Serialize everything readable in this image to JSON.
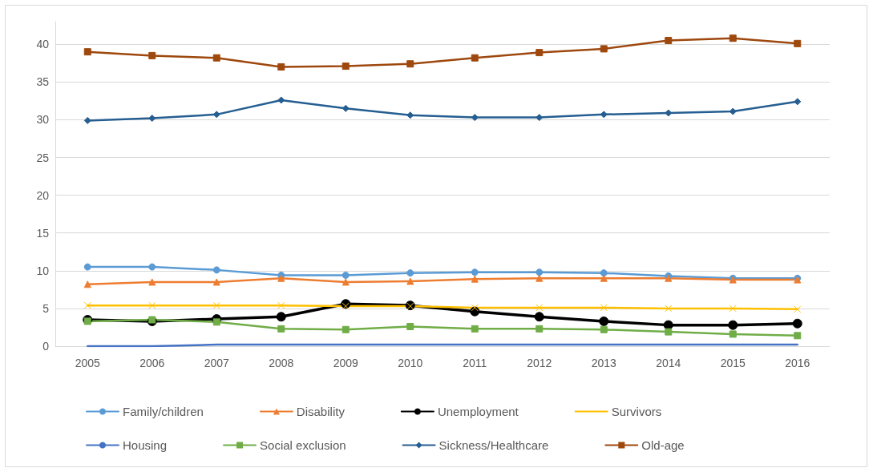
{
  "chart_data": {
    "type": "line",
    "categories": [
      "2005",
      "2006",
      "2007",
      "2008",
      "2009",
      "2010",
      "2011",
      "2012",
      "2013",
      "2014",
      "2015",
      "2016"
    ],
    "series": [
      {
        "name": "Family/children",
        "color": "#5b9bd5",
        "marker": "circle",
        "values": [
          10.5,
          10.5,
          10.1,
          9.4,
          9.4,
          9.7,
          9.8,
          9.8,
          9.7,
          9.3,
          9.0,
          9.0
        ]
      },
      {
        "name": "Disability",
        "color": "#ed7d31",
        "marker": "triangle",
        "values": [
          8.2,
          8.5,
          8.5,
          9.0,
          8.5,
          8.6,
          8.9,
          9.0,
          9.0,
          9.0,
          8.8,
          8.8
        ]
      },
      {
        "name": "Unemployment",
        "color": "#000000",
        "marker": "circle",
        "values": [
          3.5,
          3.3,
          3.6,
          3.9,
          5.6,
          5.4,
          4.6,
          3.9,
          3.3,
          2.8,
          2.8,
          3.0
        ]
      },
      {
        "name": "Survivors",
        "color": "#ffc000",
        "marker": "cross",
        "values": [
          5.4,
          5.4,
          5.4,
          5.4,
          5.3,
          5.3,
          5.1,
          5.1,
          5.1,
          5.0,
          5.0,
          4.9
        ]
      },
      {
        "name": "Housing",
        "color": "#4472c4",
        "marker": "none",
        "values": [
          0,
          0,
          0.2,
          0.2,
          0.2,
          0.2,
          0.2,
          0.2,
          0.2,
          0.2,
          0.2,
          0.2
        ]
      },
      {
        "name": "Social exclusion",
        "color": "#70ad47",
        "marker": "square",
        "values": [
          3.3,
          3.5,
          3.2,
          2.3,
          2.2,
          2.6,
          2.3,
          2.3,
          2.2,
          1.9,
          1.6,
          1.4
        ]
      },
      {
        "name": "Sickness/Healthcare",
        "color": "#255e91",
        "marker": "diamond",
        "values": [
          29.9,
          30.2,
          30.7,
          32.6,
          31.5,
          30.6,
          30.3,
          30.3,
          30.7,
          30.9,
          31.1,
          32.4
        ]
      },
      {
        "name": "Old-age",
        "color": "#9e480e",
        "marker": "square",
        "values": [
          39.0,
          38.5,
          38.2,
          37.0,
          37.1,
          37.4,
          38.2,
          38.9,
          39.4,
          40.5,
          40.8,
          40.1
        ]
      }
    ],
    "ylim": [
      0,
      43
    ],
    "yticks": [
      0,
      5,
      10,
      15,
      20,
      25,
      30,
      35,
      40
    ],
    "grid": "y",
    "legend": "bottom",
    "line_style": "solid"
  }
}
